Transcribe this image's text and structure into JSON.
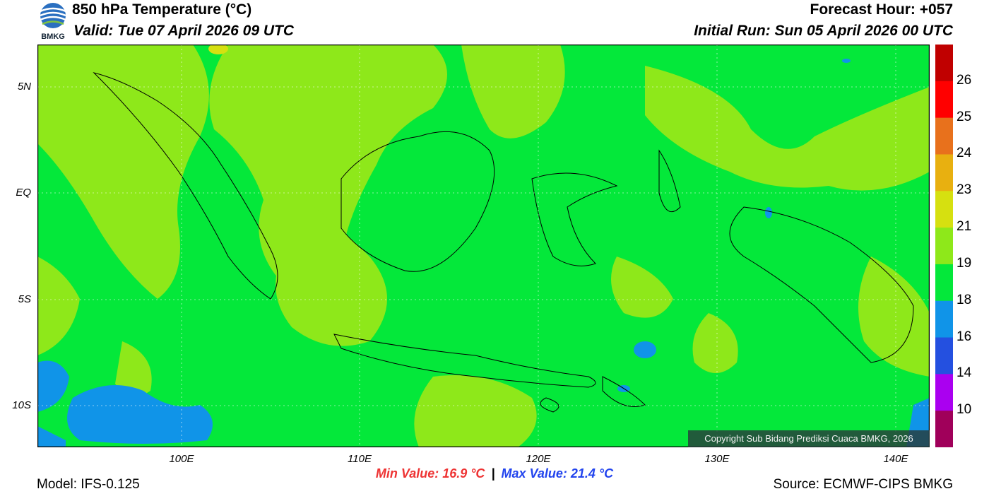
{
  "header": {
    "title": "850 hPa Temperature (°C)",
    "valid": "Valid: Tue 07 April 2026 09 UTC",
    "forecast_hour": "Forecast Hour: +057",
    "initial_run": "Initial Run: Sun 05 April 2026 00 UTC"
  },
  "logo": {
    "text": "BMKG"
  },
  "axes": {
    "lat_labels": [
      "5N",
      "EQ",
      "5S",
      "10S"
    ],
    "lon_labels": [
      "100E",
      "110E",
      "120E",
      "130E",
      "140E"
    ]
  },
  "legend": {
    "labels": [
      "26",
      "25",
      "24",
      "23",
      "21",
      "19",
      "18",
      "16",
      "14",
      "10"
    ],
    "colors": [
      "#c00000",
      "#ff0000",
      "#e8711c",
      "#e8b010",
      "#d6e010",
      "#8ee81a",
      "#04e83a",
      "#1094e8",
      "#2450e0",
      "#aa00f0",
      "#a0005a"
    ]
  },
  "copyright": "Copyright Sub Bidang Prediksi Cuaca BMKG, 2026",
  "stats": {
    "min": "Min Value: 16.9 °C",
    "separator": "|",
    "max": "Max Value: 21.4 °C"
  },
  "footer": {
    "model": "Model: IFS-0.125",
    "source": "Source: ECMWF-CIPS BMKG"
  }
}
